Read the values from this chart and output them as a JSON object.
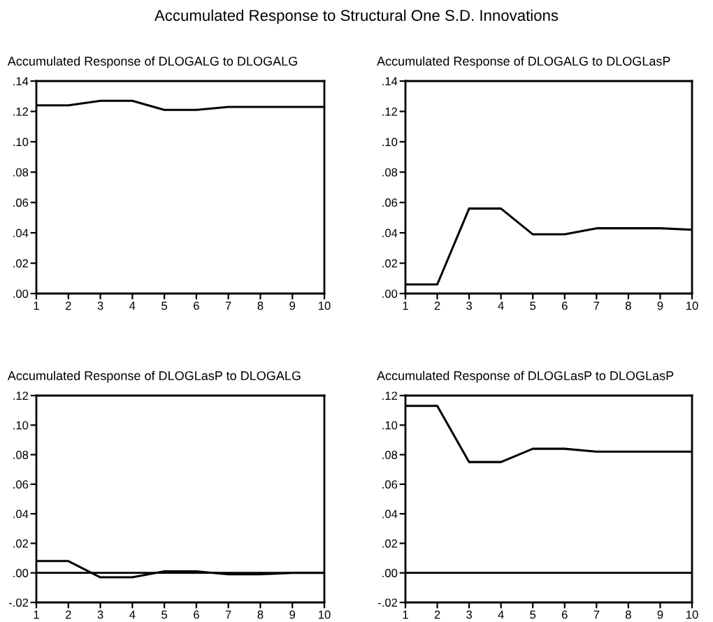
{
  "chart_data": [
    {
      "type": "line",
      "title": "Accumulated Response of DLOGALG to DLOGALG",
      "annotations": [
        "Accumulated Response to Structural One S.D. Innovations"
      ],
      "x": [
        1,
        2,
        3,
        4,
        5,
        6,
        7,
        8,
        9,
        10
      ],
      "series": [
        {
          "color": "#000000",
          "values": [
            0.124,
            0.124,
            0.127,
            0.127,
            0.121,
            0.121,
            0.123,
            0.123,
            0.123,
            0.123
          ]
        }
      ],
      "xlim": [
        1,
        10
      ],
      "xticks": [
        1,
        2,
        3,
        4,
        5,
        6,
        7,
        8,
        9,
        10
      ],
      "ylim": [
        0,
        0.14
      ],
      "yticks": [
        {
          "value": 0,
          "label": ".00"
        },
        {
          "value": 0.02,
          "label": ".02"
        },
        {
          "value": 0.04,
          "label": ".04"
        },
        {
          "value": 0.06,
          "label": ".06"
        },
        {
          "value": 0.08,
          "label": ".08"
        },
        {
          "value": 0.1,
          "label": ".10"
        },
        {
          "value": 0.12,
          "label": ".12"
        },
        {
          "value": 0.14,
          "label": ".14"
        }
      ],
      "grid": false,
      "legend": false
    },
    {
      "type": "line",
      "title": "Accumulated Response of DLOGALG to DLOGLasP",
      "x": [
        1,
        2,
        3,
        4,
        5,
        6,
        7,
        8,
        9,
        10
      ],
      "series": [
        {
          "color": "#000000",
          "values": [
            0.006,
            0.006,
            0.056,
            0.056,
            0.039,
            0.039,
            0.043,
            0.043,
            0.043,
            0.042
          ]
        }
      ],
      "xlim": [
        1,
        10
      ],
      "xticks": [
        1,
        2,
        3,
        4,
        5,
        6,
        7,
        8,
        9,
        10
      ],
      "ylim": [
        0,
        0.14
      ],
      "yticks": [
        {
          "value": 0,
          "label": ".00"
        },
        {
          "value": 0.02,
          "label": ".02"
        },
        {
          "value": 0.04,
          "label": ".04"
        },
        {
          "value": 0.06,
          "label": ".06"
        },
        {
          "value": 0.08,
          "label": ".08"
        },
        {
          "value": 0.1,
          "label": ".10"
        },
        {
          "value": 0.12,
          "label": ".12"
        },
        {
          "value": 0.14,
          "label": ".14"
        }
      ],
      "grid": false,
      "legend": false
    },
    {
      "type": "line",
      "title": "Accumulated Response of DLOGLasP to DLOGALG",
      "x": [
        1,
        2,
        3,
        4,
        5,
        6,
        7,
        8,
        9,
        10
      ],
      "series": [
        {
          "color": "#000000",
          "values": [
            0.008,
            0.008,
            -0.003,
            -0.003,
            0.001,
            0.001,
            -0.001,
            -0.001,
            0,
            0
          ]
        }
      ],
      "xlim": [
        1,
        10
      ],
      "xticks": [
        1,
        2,
        3,
        4,
        5,
        6,
        7,
        8,
        9,
        10
      ],
      "ylim": [
        -0.02,
        0.12
      ],
      "yticks": [
        {
          "value": -0.02,
          "label": "-.02"
        },
        {
          "value": 0,
          "label": ".00"
        },
        {
          "value": 0.02,
          "label": ".02"
        },
        {
          "value": 0.04,
          "label": ".04"
        },
        {
          "value": 0.06,
          "label": ".06"
        },
        {
          "value": 0.08,
          "label": ".08"
        },
        {
          "value": 0.1,
          "label": ".10"
        },
        {
          "value": 0.12,
          "label": ".12"
        }
      ],
      "ref_lines": [
        {
          "axis": "y",
          "value": 0,
          "color": "#000000"
        }
      ],
      "grid": false,
      "legend": false
    },
    {
      "type": "line",
      "title": "Accumulated Response of DLOGLasP to DLOGLasP",
      "x": [
        1,
        2,
        3,
        4,
        5,
        6,
        7,
        8,
        9,
        10
      ],
      "series": [
        {
          "color": "#000000",
          "values": [
            0.113,
            0.113,
            0.075,
            0.075,
            0.084,
            0.084,
            0.082,
            0.082,
            0.082,
            0.082
          ]
        }
      ],
      "xlim": [
        1,
        10
      ],
      "xticks": [
        1,
        2,
        3,
        4,
        5,
        6,
        7,
        8,
        9,
        10
      ],
      "ylim": [
        -0.02,
        0.12
      ],
      "yticks": [
        {
          "value": -0.02,
          "label": "-.02"
        },
        {
          "value": 0,
          "label": ".00"
        },
        {
          "value": 0.02,
          "label": ".02"
        },
        {
          "value": 0.04,
          "label": ".04"
        },
        {
          "value": 0.06,
          "label": ".06"
        },
        {
          "value": 0.08,
          "label": ".08"
        },
        {
          "value": 0.1,
          "label": ".10"
        },
        {
          "value": 0.12,
          "label": ".12"
        }
      ],
      "ref_lines": [
        {
          "axis": "y",
          "value": 0,
          "color": "#000000"
        }
      ],
      "grid": false,
      "legend": false
    }
  ]
}
